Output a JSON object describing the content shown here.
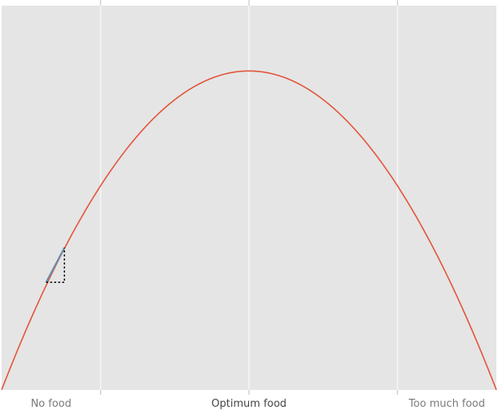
{
  "chart_data": {
    "type": "line",
    "title": "",
    "xlabel": "",
    "ylabel": "",
    "xlim": [
      0,
      1
    ],
    "ylim": [
      0,
      1
    ],
    "grid": true,
    "x_ticks": [
      {
        "value": 0.2,
        "label": ""
      },
      {
        "value": 0.5,
        "label": ""
      },
      {
        "value": 0.8,
        "label": ""
      }
    ],
    "x_category_labels": [
      {
        "value": 0.1,
        "label": "No food"
      },
      {
        "value": 0.5,
        "label": "Optimum food"
      },
      {
        "value": 0.9,
        "label": "Too much food"
      }
    ],
    "series": [
      {
        "curve": "parabola",
        "vertex": [
          0.5,
          0.83
        ],
        "endpoints_y": 0,
        "samples": 101,
        "color": "#e2553b"
      }
    ],
    "tangent_segment": {
      "x": [
        0.09,
        0.127
      ],
      "y": [
        0.28,
        0.37
      ],
      "color": "#6a8fb0"
    },
    "slope_triangle": {
      "corner": [
        0.127,
        0.28
      ],
      "color": "#000000"
    },
    "colors": {
      "plot_background": "#e5e5e5",
      "grid": "#ffffff",
      "tick_mark": "#bbbbbb",
      "side_label": "#7a7a7a",
      "center_label": "#444444"
    }
  }
}
